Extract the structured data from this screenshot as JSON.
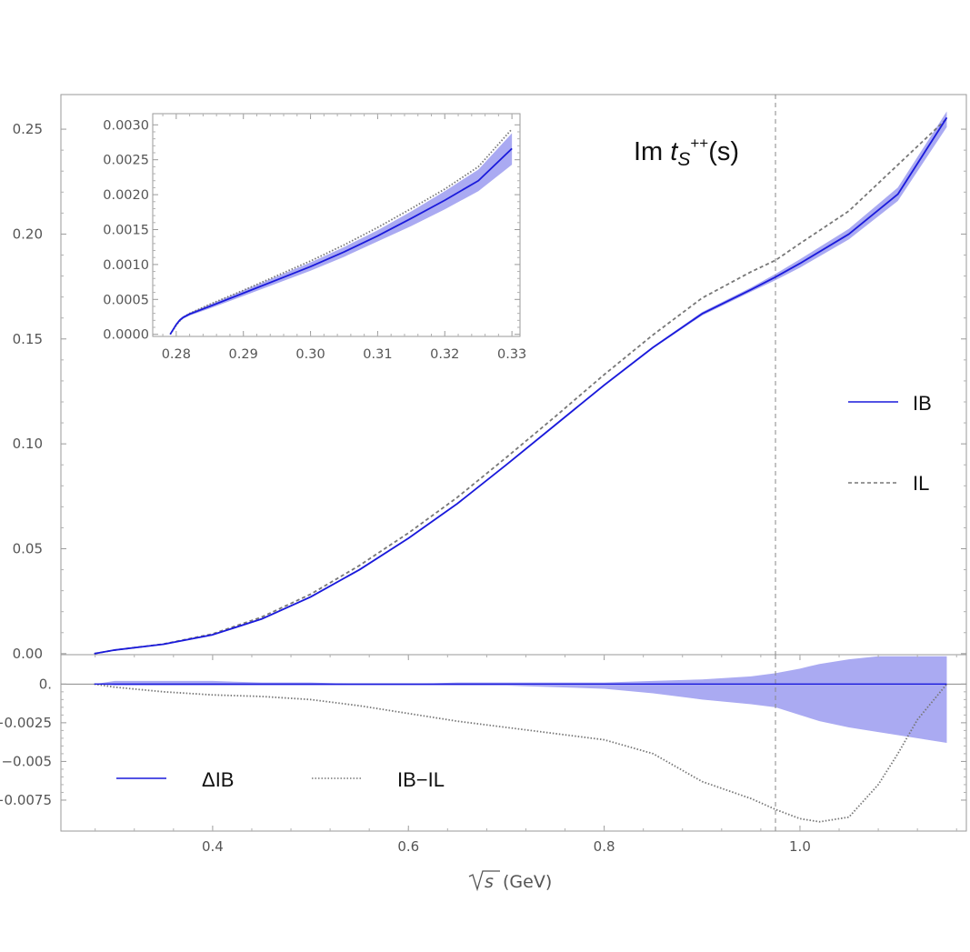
{
  "chart_data": [
    {
      "type": "line",
      "panel": "main",
      "title": {
        "prefix": "Im ",
        "var": "t",
        "sub": "S",
        "sup": "++",
        "suffix": "(s)"
      },
      "xlim": [
        0.245,
        1.17
      ],
      "ylim": [
        -0.0005,
        0.2665
      ],
      "yticks": [
        0.0,
        0.05,
        0.1,
        0.15,
        0.2,
        0.25
      ],
      "ytick_labels": [
        "0.00",
        "0.05",
        "0.10",
        "0.15",
        "0.20",
        "0.25"
      ],
      "vline": 0.975,
      "legend_position": "right",
      "x": [
        0.2791,
        0.3,
        0.35,
        0.4,
        0.45,
        0.5,
        0.55,
        0.6,
        0.65,
        0.7,
        0.75,
        0.8,
        0.85,
        0.9,
        0.95,
        0.975,
        1.0,
        1.05,
        1.1,
        1.15
      ],
      "series": [
        {
          "name": "IB",
          "style": "solid",
          "color": "#1a1adb",
          "values": [
            0.0,
            0.0017,
            0.0045,
            0.009,
            0.0165,
            0.027,
            0.04,
            0.055,
            0.0715,
            0.09,
            0.109,
            0.128,
            0.146,
            0.162,
            0.1735,
            0.1795,
            0.186,
            0.2,
            0.219,
            0.2555
          ],
          "band_lower": [
            0.0,
            0.0015,
            0.0042,
            0.0086,
            0.0161,
            0.0266,
            0.0396,
            0.0546,
            0.0711,
            0.0896,
            0.1085,
            0.1275,
            0.1455,
            0.1612,
            0.1725,
            0.178,
            0.184,
            0.1975,
            0.2158,
            0.251
          ],
          "band_upper": [
            0.0,
            0.0019,
            0.0048,
            0.0094,
            0.0169,
            0.0274,
            0.0404,
            0.0554,
            0.0719,
            0.0904,
            0.1095,
            0.1285,
            0.1465,
            0.1628,
            0.1745,
            0.181,
            0.188,
            0.2025,
            0.2222,
            0.2585
          ]
        },
        {
          "name": "IL",
          "style": "dashed",
          "color": "#777777",
          "values": [
            0.0,
            0.0017,
            0.0046,
            0.0094,
            0.0174,
            0.0283,
            0.042,
            0.0575,
            0.0745,
            0.0935,
            0.113,
            0.133,
            0.152,
            0.1695,
            0.182,
            0.1875,
            0.1955,
            0.211,
            0.233,
            0.255
          ]
        }
      ]
    },
    {
      "type": "line",
      "panel": "inset",
      "xlim": [
        0.2765,
        0.3312
      ],
      "ylim": [
        -3e-05,
        0.00316
      ],
      "xticks": [
        0.28,
        0.29,
        0.3,
        0.31,
        0.32,
        0.33
      ],
      "xtick_labels": [
        "0.28",
        "0.29",
        "0.30",
        "0.31",
        "0.32",
        "0.33"
      ],
      "yticks": [
        0.0,
        0.0005,
        0.001,
        0.0015,
        0.002,
        0.0025,
        0.003
      ],
      "ytick_labels": [
        "0.0000",
        "0.0005",
        "0.0010",
        "0.0015",
        "0.0020",
        "0.0025",
        "0.0030"
      ],
      "x": [
        0.2791,
        0.28,
        0.2805,
        0.281,
        0.282,
        0.285,
        0.29,
        0.295,
        0.3,
        0.305,
        0.31,
        0.315,
        0.32,
        0.325,
        0.33
      ],
      "series": [
        {
          "name": "IB",
          "style": "solid",
          "color": "#1a1adb",
          "values": [
            0.0,
            0.00014,
            0.0002,
            0.00024,
            0.00029,
            0.0004,
            0.00059,
            0.00078,
            0.00097,
            0.00118,
            0.00141,
            0.00166,
            0.00192,
            0.0022,
            0.00266
          ],
          "band_lower": [
            0.0,
            0.00013,
            0.00018,
            0.00022,
            0.00027,
            0.00037,
            0.00055,
            0.00073,
            0.00091,
            0.00111,
            0.00133,
            0.00155,
            0.00179,
            0.00205,
            0.00243
          ],
          "band_upper": [
            0.0,
            0.00015,
            0.00022,
            0.00026,
            0.00031,
            0.00043,
            0.00063,
            0.00083,
            0.00103,
            0.00125,
            0.00149,
            0.00176,
            0.00205,
            0.00236,
            0.00288
          ]
        },
        {
          "name": "IL",
          "style": "dotted",
          "color": "#777777",
          "values": [
            0.0,
            0.00013,
            0.00019,
            0.00024,
            0.0003,
            0.00043,
            0.00063,
            0.00084,
            0.00105,
            0.00128,
            0.00153,
            0.0018,
            0.00208,
            0.0024,
            0.00294
          ]
        }
      ]
    },
    {
      "type": "line",
      "panel": "residual",
      "xlim": [
        0.245,
        1.17
      ],
      "ylim": [
        -0.0095,
        0.0019
      ],
      "xlabel": "(GeV)",
      "xlabel_root": "s",
      "xticks": [
        0.4,
        0.6,
        0.8,
        1.0
      ],
      "xtick_labels": [
        "0.4",
        "0.6",
        "0.8",
        "1.0"
      ],
      "yticks": [
        0.0,
        -0.0025,
        -0.005,
        -0.0075
      ],
      "ytick_labels": [
        "0.",
        "−0.0025",
        "−0.005",
        "−0.0075"
      ],
      "vline": 0.975,
      "legend_position": "bottom-left",
      "x": [
        0.2791,
        0.3,
        0.35,
        0.4,
        0.45,
        0.5,
        0.55,
        0.6,
        0.65,
        0.7,
        0.75,
        0.8,
        0.85,
        0.9,
        0.95,
        0.975,
        1.0,
        1.02,
        1.05,
        1.08,
        1.1,
        1.12,
        1.15
      ],
      "series": [
        {
          "name": "ΔIB",
          "style": "solid",
          "color": "#1a1adb",
          "values": [
            0.0,
            0.0,
            0.0,
            0.0,
            0.0,
            0.0,
            0.0,
            0.0,
            0.0,
            0.0,
            0.0,
            0.0,
            0.0,
            0.0,
            0.0,
            0.0,
            0.0,
            0.0,
            0.0,
            0.0,
            0.0,
            0.0,
            0.0
          ],
          "band_lower": [
            0.0,
            -0.0001,
            -0.0001,
            -0.0001,
            -0.0001,
            -0.0001,
            -0.0001,
            -0.0001,
            -0.0001,
            -0.0001,
            -0.0002,
            -0.0003,
            -0.0006,
            -0.001,
            -0.0013,
            -0.0015,
            -0.002,
            -0.0024,
            -0.0028,
            -0.0031,
            -0.0033,
            -0.0035,
            -0.0038
          ],
          "band_upper": [
            0.0,
            0.0002,
            0.0002,
            0.0002,
            0.0001,
            0.0001,
            0.0,
            0.0,
            0.0001,
            0.0001,
            0.0001,
            0.0001,
            0.0002,
            0.0003,
            0.0005,
            0.0007,
            0.001,
            0.0013,
            0.0016,
            0.0018,
            0.0018,
            0.0018,
            0.0018
          ]
        },
        {
          "name": "IB−IL",
          "style": "dotted",
          "color": "#777777",
          "values": [
            0.0,
            -0.0002,
            -0.0005,
            -0.0007,
            -0.0008,
            -0.001,
            -0.0014,
            -0.0019,
            -0.0024,
            -0.0028,
            -0.0032,
            -0.0036,
            -0.0045,
            -0.0063,
            -0.0074,
            -0.0081,
            -0.0087,
            -0.0089,
            -0.0086,
            -0.0065,
            -0.0045,
            -0.0023,
            0.0
          ]
        }
      ]
    }
  ]
}
